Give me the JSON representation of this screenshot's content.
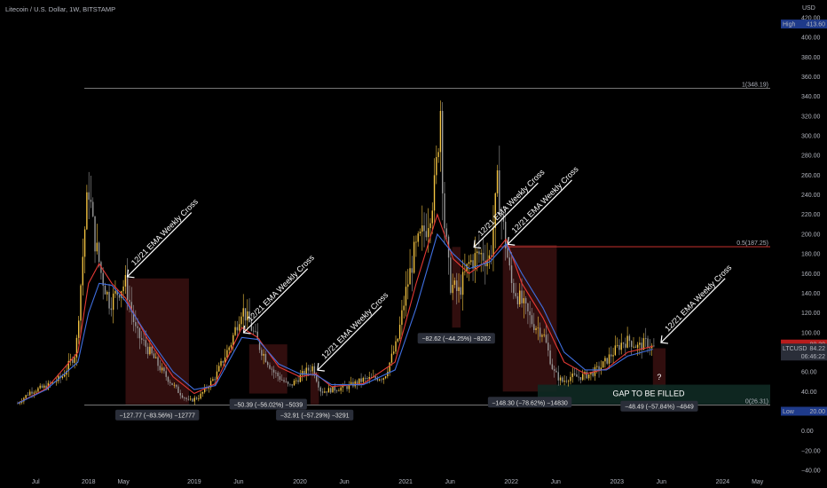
{
  "header": {
    "title": "Litecoin / U.S. Dollar, 1W, BITSTAMP",
    "currency": "USD"
  },
  "chart_data": {
    "type": "candlestick",
    "title": "Litecoin / U.S. Dollar, 1W, BITSTAMP",
    "ylabel": "USD",
    "ylim": [
      -40,
      420
    ],
    "y_ticks": [
      420,
      400,
      380,
      360,
      340,
      320,
      300,
      280,
      260,
      240,
      220,
      200,
      180,
      160,
      140,
      120,
      100,
      80,
      60,
      40,
      20,
      0,
      -20,
      -40
    ],
    "y_tick_labels": [
      "420.00",
      "400.00",
      "380.00",
      "360.00",
      "340.00",
      "320.00",
      "300.00",
      "280.00",
      "260.00",
      "240.00",
      "220.00",
      "200.00",
      "180.00",
      "160.00",
      "140.00",
      "120.00",
      "100.00",
      "80.00",
      "60.00",
      "40.00",
      "20.00",
      "0.00",
      "−20.00",
      "−40.00"
    ],
    "x_ticks": [
      {
        "t": 2017.5,
        "label": "Jul"
      },
      {
        "t": 2018.0,
        "label": "2018"
      },
      {
        "t": 2018.33,
        "label": "May"
      },
      {
        "t": 2019.0,
        "label": "2019"
      },
      {
        "t": 2019.42,
        "label": "Jun"
      },
      {
        "t": 2020.0,
        "label": "2020"
      },
      {
        "t": 2020.42,
        "label": "Jun"
      },
      {
        "t": 2021.0,
        "label": "2021"
      },
      {
        "t": 2021.42,
        "label": "Jun"
      },
      {
        "t": 2022.0,
        "label": "2022"
      },
      {
        "t": 2022.42,
        "label": "Jun"
      },
      {
        "t": 2023.0,
        "label": "2023"
      },
      {
        "t": 2023.42,
        "label": "Jun"
      },
      {
        "t": 2024.0,
        "label": "2024"
      },
      {
        "t": 2024.33,
        "label": "May"
      }
    ],
    "xlim": [
      2017.33,
      2024.45
    ],
    "price_path": [
      [
        2017.33,
        28
      ],
      [
        2017.45,
        40
      ],
      [
        2017.6,
        45
      ],
      [
        2017.75,
        55
      ],
      [
        2017.88,
        80
      ],
      [
        2017.96,
        200
      ],
      [
        2018.0,
        250
      ],
      [
        2018.05,
        200
      ],
      [
        2018.12,
        160
      ],
      [
        2018.2,
        130
      ],
      [
        2018.3,
        145
      ],
      [
        2018.35,
        150
      ],
      [
        2018.45,
        100
      ],
      [
        2018.55,
        85
      ],
      [
        2018.7,
        60
      ],
      [
        2018.85,
        40
      ],
      [
        2018.95,
        30
      ],
      [
        2019.05,
        35
      ],
      [
        2019.2,
        55
      ],
      [
        2019.35,
        90
      ],
      [
        2019.45,
        125
      ],
      [
        2019.52,
        110
      ],
      [
        2019.62,
        85
      ],
      [
        2019.75,
        60
      ],
      [
        2019.9,
        45
      ],
      [
        2020.05,
        60
      ],
      [
        2020.12,
        65
      ],
      [
        2020.2,
        40
      ],
      [
        2020.3,
        42
      ],
      [
        2020.45,
        45
      ],
      [
        2020.6,
        52
      ],
      [
        2020.8,
        55
      ],
      [
        2020.92,
        90
      ],
      [
        2021.0,
        140
      ],
      [
        2021.08,
        180
      ],
      [
        2021.2,
        210
      ],
      [
        2021.28,
        250
      ],
      [
        2021.33,
        330
      ],
      [
        2021.36,
        220
      ],
      [
        2021.42,
        150
      ],
      [
        2021.5,
        140
      ],
      [
        2021.6,
        170
      ],
      [
        2021.7,
        180
      ],
      [
        2021.8,
        175
      ],
      [
        2021.87,
        250
      ],
      [
        2021.92,
        210
      ],
      [
        2022.0,
        150
      ],
      [
        2022.1,
        130
      ],
      [
        2022.2,
        110
      ],
      [
        2022.3,
        100
      ],
      [
        2022.4,
        60
      ],
      [
        2022.48,
        50
      ],
      [
        2022.55,
        55
      ],
      [
        2022.65,
        55
      ],
      [
        2022.75,
        58
      ],
      [
        2022.85,
        65
      ],
      [
        2022.95,
        78
      ],
      [
        2023.05,
        90
      ],
      [
        2023.12,
        92
      ],
      [
        2023.2,
        85
      ],
      [
        2023.28,
        90
      ],
      [
        2023.34,
        84.22
      ]
    ],
    "ema_12": [
      [
        2017.33,
        28
      ],
      [
        2017.6,
        43
      ],
      [
        2017.9,
        80
      ],
      [
        2018.0,
        150
      ],
      [
        2018.1,
        170
      ],
      [
        2018.22,
        150
      ],
      [
        2018.35,
        135
      ],
      [
        2018.55,
        95
      ],
      [
        2018.8,
        55
      ],
      [
        2019.0,
        38
      ],
      [
        2019.2,
        48
      ],
      [
        2019.45,
        105
      ],
      [
        2019.6,
        95
      ],
      [
        2019.8,
        65
      ],
      [
        2020.0,
        55
      ],
      [
        2020.15,
        58
      ],
      [
        2020.3,
        45
      ],
      [
        2020.6,
        48
      ],
      [
        2020.9,
        70
      ],
      [
        2021.1,
        150
      ],
      [
        2021.3,
        220
      ],
      [
        2021.45,
        175
      ],
      [
        2021.6,
        160
      ],
      [
        2021.8,
        175
      ],
      [
        2021.95,
        195
      ],
      [
        2022.1,
        150
      ],
      [
        2022.3,
        115
      ],
      [
        2022.5,
        70
      ],
      [
        2022.7,
        58
      ],
      [
        2022.9,
        63
      ],
      [
        2023.1,
        80
      ],
      [
        2023.34,
        86
      ]
    ],
    "ema_21": [
      [
        2017.33,
        28
      ],
      [
        2017.6,
        42
      ],
      [
        2017.9,
        70
      ],
      [
        2018.0,
        120
      ],
      [
        2018.1,
        150
      ],
      [
        2018.22,
        148
      ],
      [
        2018.35,
        132
      ],
      [
        2018.55,
        98
      ],
      [
        2018.8,
        60
      ],
      [
        2019.0,
        42
      ],
      [
        2019.2,
        46
      ],
      [
        2019.45,
        95
      ],
      [
        2019.6,
        93
      ],
      [
        2019.8,
        68
      ],
      [
        2020.0,
        58
      ],
      [
        2020.15,
        57
      ],
      [
        2020.3,
        47
      ],
      [
        2020.6,
        47
      ],
      [
        2020.9,
        62
      ],
      [
        2021.1,
        125
      ],
      [
        2021.3,
        200
      ],
      [
        2021.45,
        180
      ],
      [
        2021.6,
        165
      ],
      [
        2021.8,
        172
      ],
      [
        2021.95,
        190
      ],
      [
        2022.1,
        160
      ],
      [
        2022.3,
        125
      ],
      [
        2022.5,
        80
      ],
      [
        2022.7,
        62
      ],
      [
        2022.9,
        62
      ],
      [
        2023.1,
        76
      ],
      [
        2023.34,
        83
      ]
    ],
    "fib_levels": [
      {
        "value": 348.19,
        "label": "1(348.19)",
        "t_start": 2017.96,
        "color": "#9e9e9e"
      },
      {
        "value": 187.25,
        "label": "0.5(187.25)",
        "t_start": 2021.88,
        "color": "#e53935"
      },
      {
        "value": 26.31,
        "label": "0(26.31)",
        "t_start": 2017.96,
        "color": "#9e9e9e"
      }
    ],
    "drawdown_boxes": [
      {
        "t_start": 2018.35,
        "t_end": 2018.95,
        "top": 155,
        "bottom": 27,
        "label": "−127.77 (−83.56%) −12777"
      },
      {
        "t_start": 2019.52,
        "t_end": 2019.88,
        "top": 88,
        "bottom": 38,
        "label": "−50.39 (−56.02%) −5039"
      },
      {
        "t_start": 2020.1,
        "t_end": 2020.18,
        "top": 60,
        "bottom": 27,
        "label": "−32.91 (−57.29%) −3291"
      },
      {
        "t_start": 2021.44,
        "t_end": 2021.52,
        "top": 187,
        "bottom": 105,
        "label": "−82.62 (−44.25%) −8262"
      },
      {
        "t_start": 2021.92,
        "t_end": 2022.43,
        "top": 189,
        "bottom": 40,
        "label": "−148.30 (−78.62%) −14830"
      },
      {
        "t_start": 2023.34,
        "t_end": 2023.46,
        "top": 84,
        "bottom": 36,
        "label": "−48.49 (−57.84%) −4849"
      }
    ],
    "annotations": [
      {
        "text": "12/21 EMA Weekly Cross",
        "t": 2018.35,
        "v": 155
      },
      {
        "text": "12/21 EMA Weekly Cross",
        "t": 2019.45,
        "v": 98
      },
      {
        "text": "12/21 EMA Weekly Cross",
        "t": 2020.15,
        "v": 60
      },
      {
        "text": "12/21 EMA Weekly Cross",
        "t": 2021.63,
        "v": 185
      },
      {
        "text": "12/21 EMA Weekly Cross",
        "t": 2021.95,
        "v": 188
      },
      {
        "text": "12/21 EMA Weekly Cross",
        "t": 2023.4,
        "v": 88
      }
    ],
    "gap_box": {
      "t_start": 2022.25,
      "t_end": 2024.45,
      "top": 47,
      "bottom": 27,
      "label": "GAP TO BE FILLED",
      "question": "?"
    },
    "price_labels": {
      "high": {
        "label": "High",
        "value": "413.60"
      },
      "low": {
        "label": "Low",
        "value": "20.00"
      },
      "last": {
        "value": "88.30"
      },
      "ticker": {
        "label": "LTCUSD",
        "value": "84.22",
        "countdown": "06:46:22"
      }
    }
  },
  "colors": {
    "bull": "#f5c542",
    "bear": "#9a9a9a",
    "ema12": "#e53935",
    "ema21": "#3f6fe0",
    "box": "#5a1a1a",
    "gap": "#0f2a24",
    "arrow": "#ffffff"
  }
}
